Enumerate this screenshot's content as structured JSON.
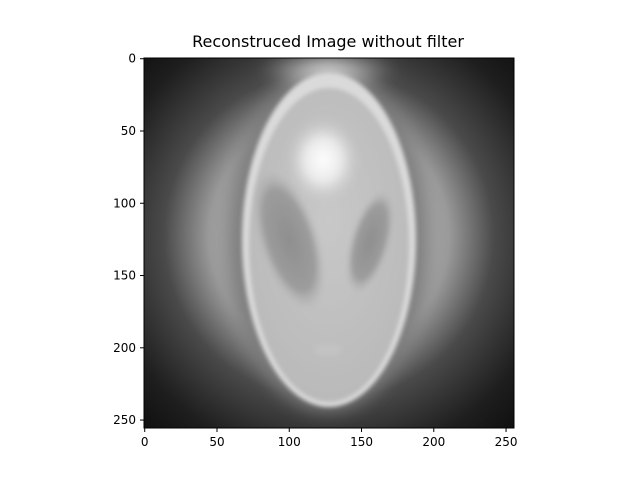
{
  "title": "Reconstruced Image without filter",
  "colormap": "gray",
  "image": {
    "rows": 256,
    "cols": 256,
    "description_values": {
      "background_outside": 0.05,
      "ellipse_outer_ring": 0.85,
      "ellipse_inner": 0.72,
      "top_bright_spot": 0.97,
      "left_dark_lobe": 0.55,
      "right_dark_lobe": 0.55
    }
  },
  "axes": {
    "xlim": [
      0,
      256
    ],
    "ylim": [
      256,
      0
    ],
    "x_ticks": [
      {
        "value": 0,
        "label": "0"
      },
      {
        "value": 50,
        "label": "50"
      },
      {
        "value": 100,
        "label": "100"
      },
      {
        "value": 150,
        "label": "150"
      },
      {
        "value": 200,
        "label": "200"
      },
      {
        "value": 250,
        "label": "250"
      }
    ],
    "y_ticks": [
      {
        "value": 0,
        "label": "0"
      },
      {
        "value": 50,
        "label": "50"
      },
      {
        "value": 100,
        "label": "100"
      },
      {
        "value": 150,
        "label": "150"
      },
      {
        "value": 200,
        "label": "200"
      },
      {
        "value": 250,
        "label": "250"
      }
    ]
  }
}
